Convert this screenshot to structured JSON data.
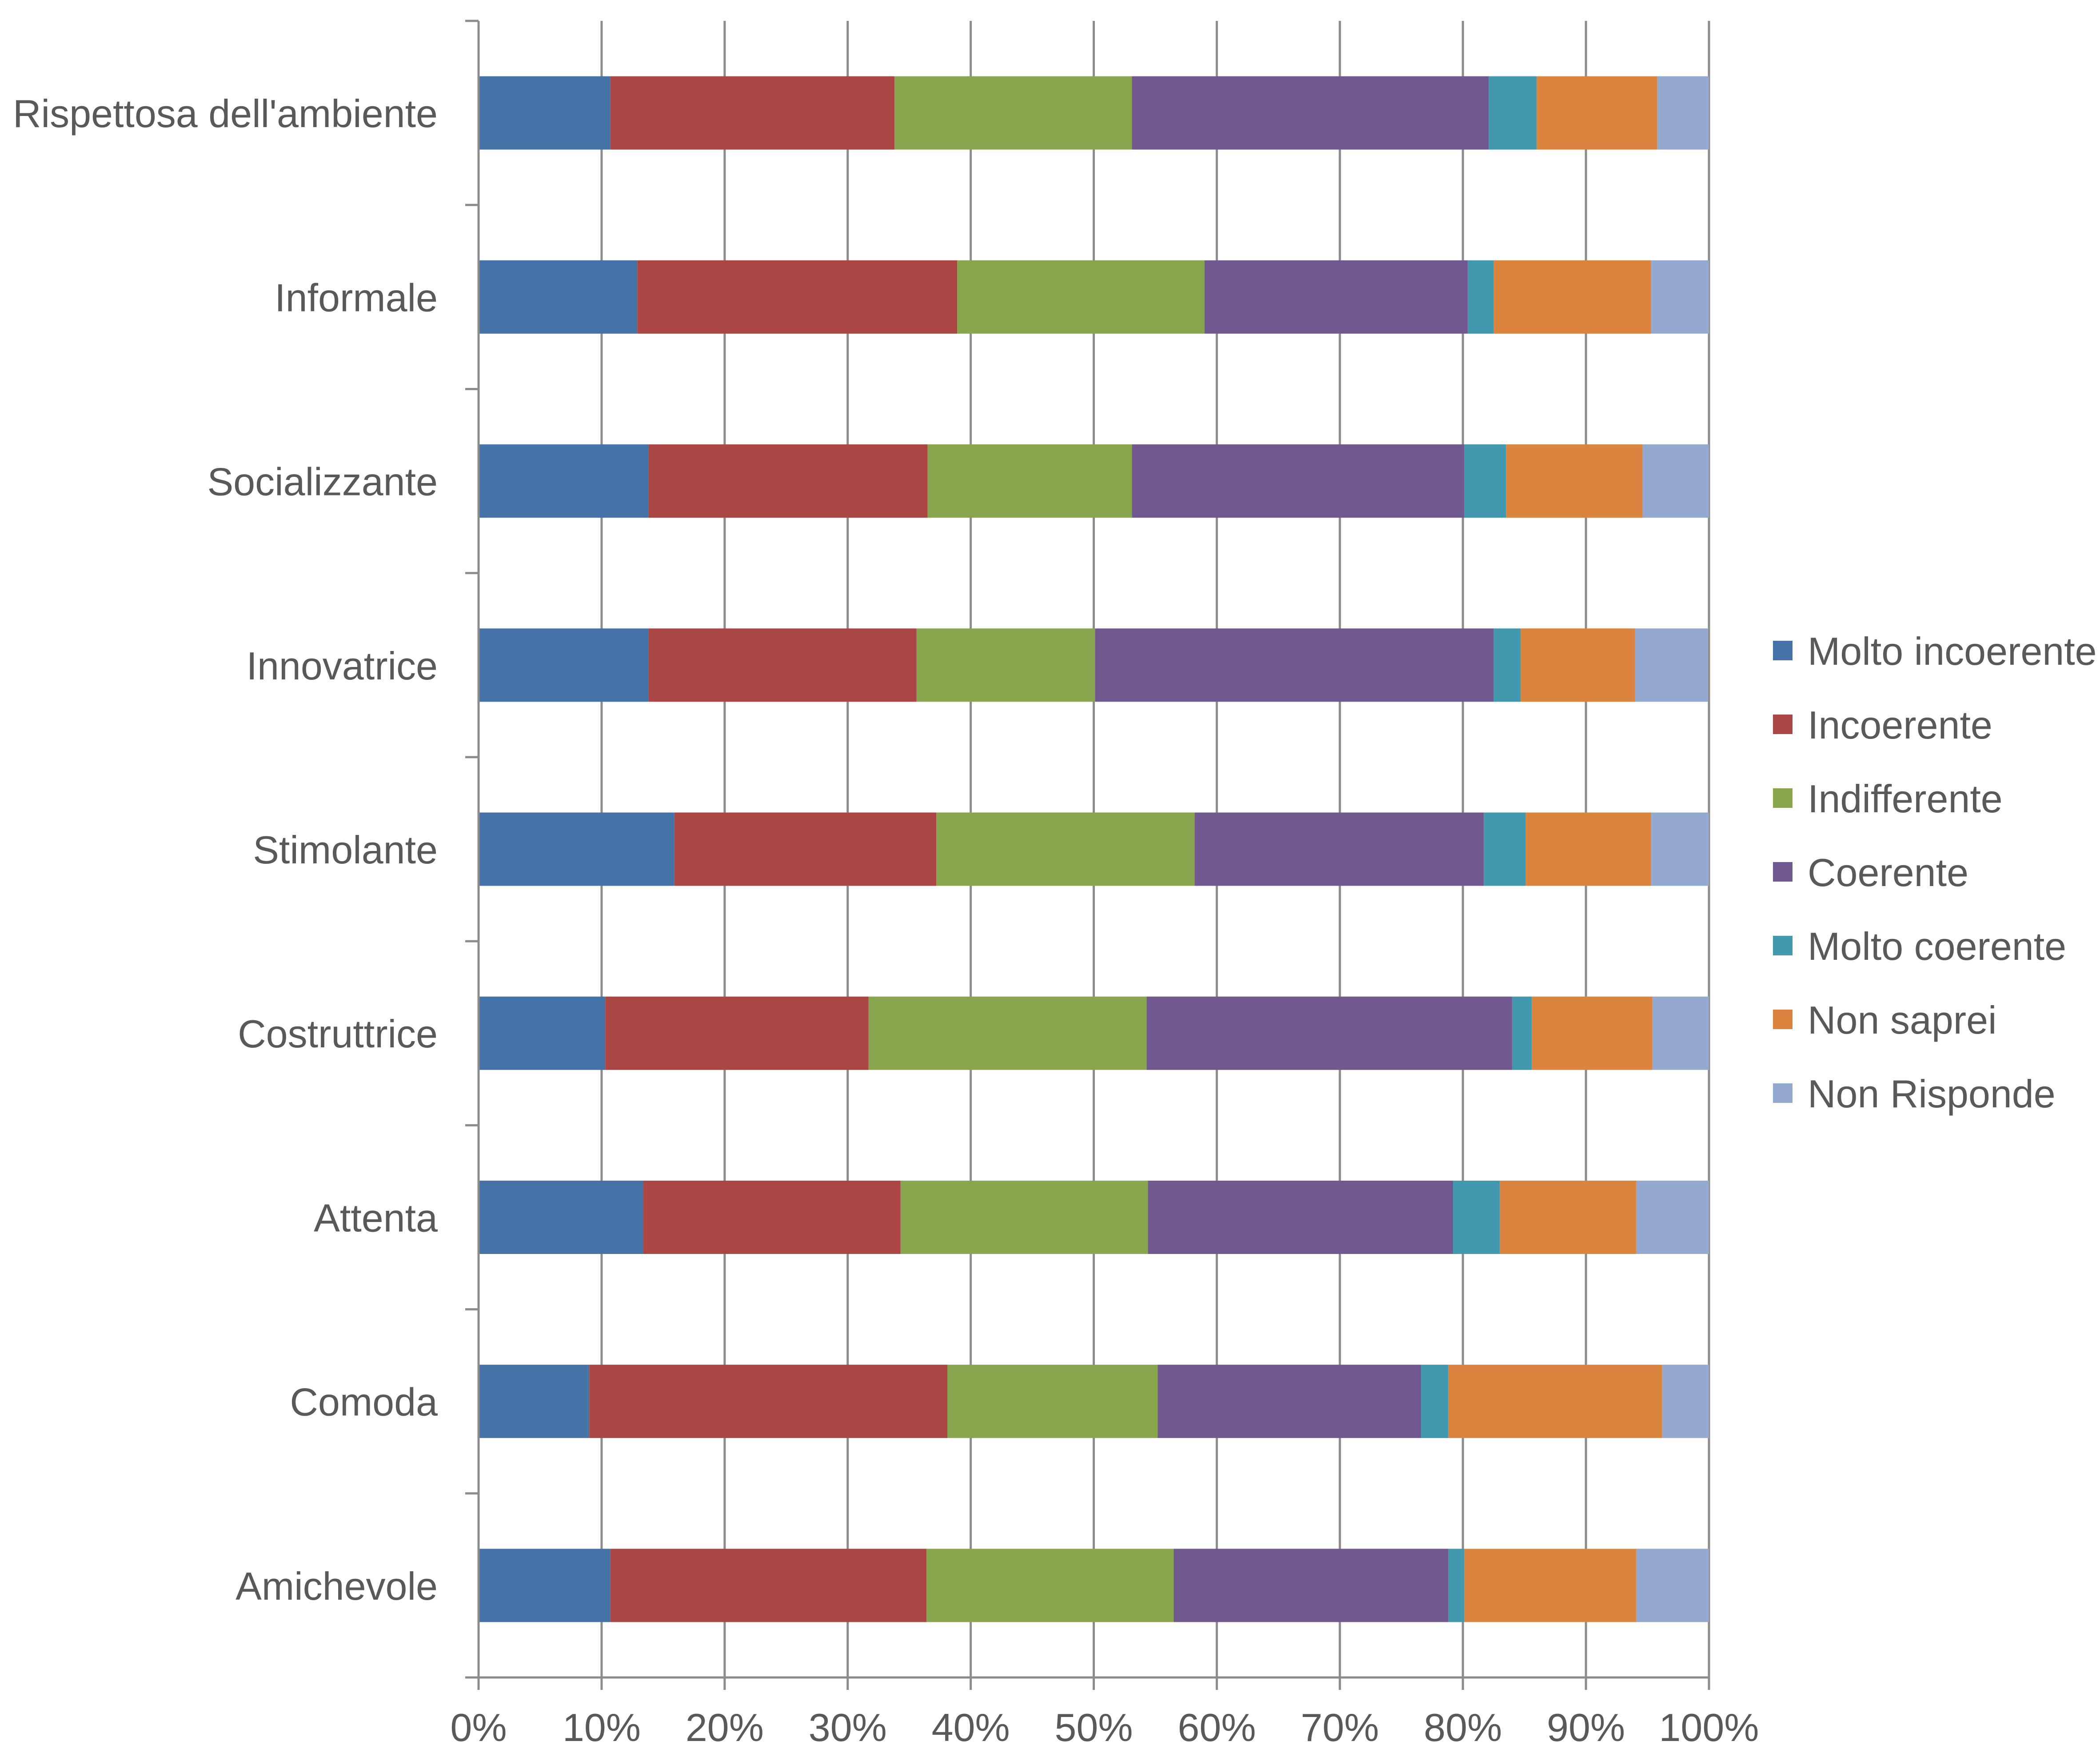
{
  "chart_data": {
    "type": "bar",
    "orientation": "horizontal",
    "stacked": "percent",
    "title": "",
    "xlabel": "",
    "ylabel": "",
    "xlim": [
      0,
      100
    ],
    "x_ticks": [
      "0%",
      "10%",
      "20%",
      "30%",
      "40%",
      "50%",
      "60%",
      "70%",
      "80%",
      "90%",
      "100%"
    ],
    "grid": "vertical",
    "legend_position": "right",
    "categories": [
      "Rispettosa dell'ambiente",
      "Informale",
      "Socializzante",
      "Innovatrice",
      "Stimolante",
      "Costruttrice",
      "Attenta",
      "Comoda",
      "Amichevole"
    ],
    "series": [
      {
        "name": "Molto incoerente",
        "color": "#4572A7",
        "values": [
          10.7,
          12.9,
          13.8,
          13.8,
          15.9,
          10.3,
          13.4,
          9.0,
          10.7
        ]
      },
      {
        "name": "Incoerente",
        "color": "#AA4643",
        "values": [
          23.1,
          26.0,
          22.7,
          21.8,
          21.3,
          21.4,
          20.9,
          29.1,
          25.7
        ]
      },
      {
        "name": "Indifferente",
        "color": "#89A54E",
        "values": [
          19.3,
          20.1,
          16.6,
          14.5,
          21.0,
          22.6,
          20.1,
          17.1,
          20.1
        ]
      },
      {
        "name": "Coerente",
        "color": "#71588F",
        "values": [
          29.0,
          21.4,
          27.0,
          32.4,
          23.5,
          29.7,
          24.8,
          21.4,
          22.3
        ]
      },
      {
        "name": "Molto coerente",
        "color": "#4198AF",
        "values": [
          3.9,
          2.1,
          3.4,
          2.2,
          3.4,
          1.6,
          3.8,
          2.2,
          1.3
        ]
      },
      {
        "name": "Non saprei",
        "color": "#DB843D",
        "values": [
          9.8,
          12.8,
          11.1,
          9.3,
          10.2,
          9.8,
          11.1,
          17.4,
          14.0
        ]
      },
      {
        "name": "Non Risponde",
        "color": "#93A9CF",
        "values": [
          4.2,
          4.7,
          5.4,
          5.9,
          4.7,
          4.6,
          5.9,
          3.8,
          5.9
        ]
      }
    ]
  }
}
